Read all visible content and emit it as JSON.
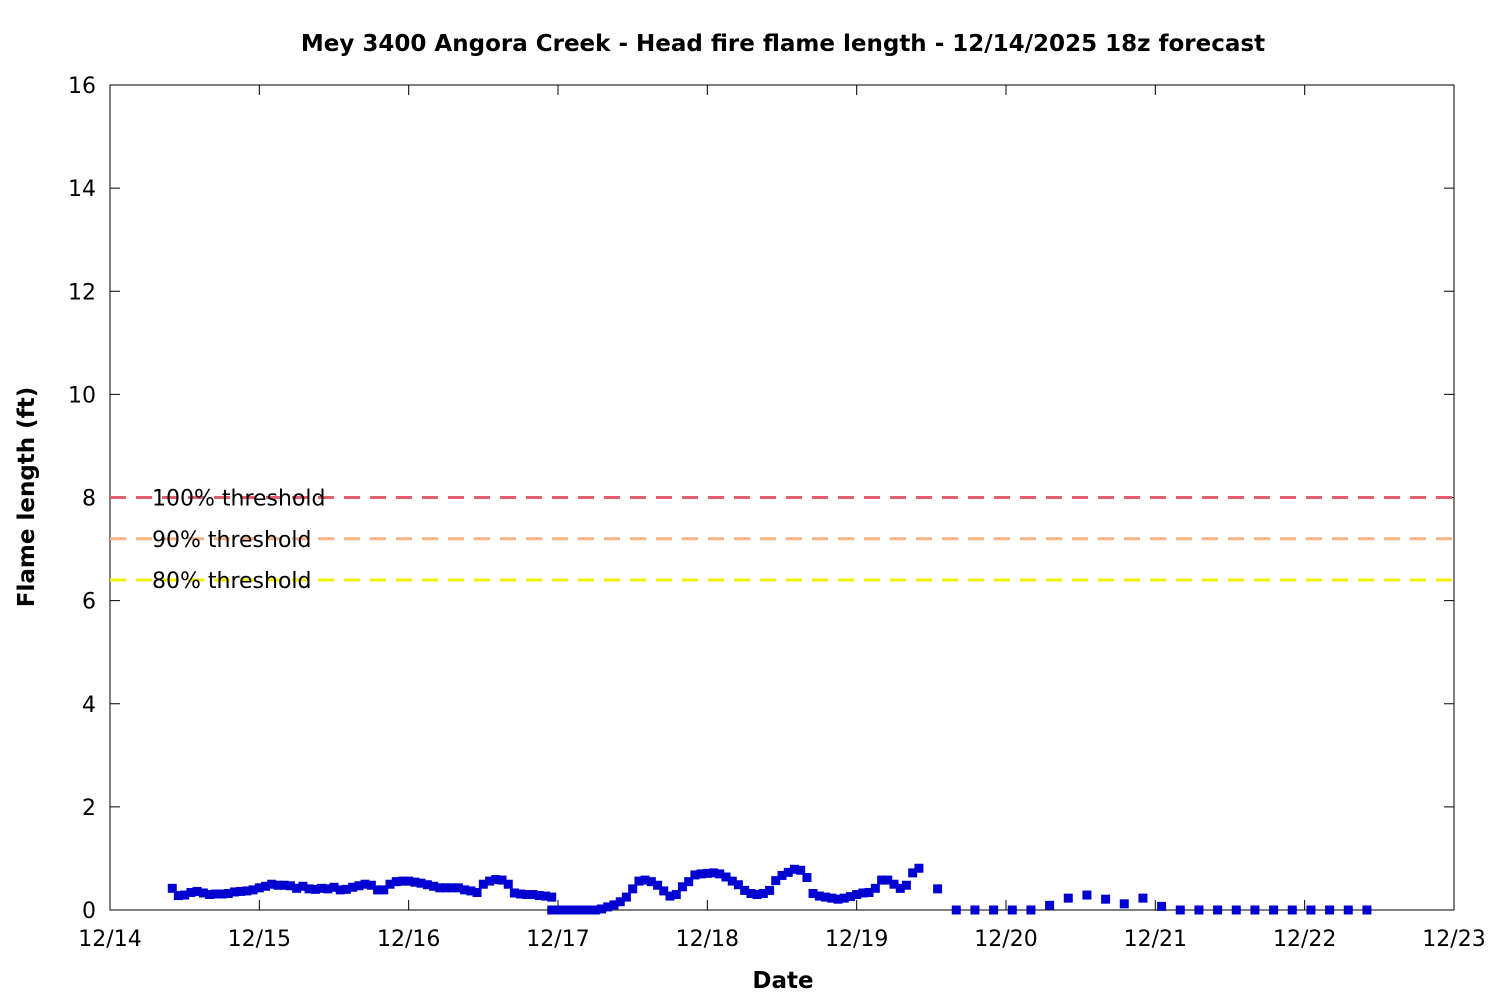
{
  "chart_data": {
    "type": "scatter",
    "title": "Mey 3400 Angora Creek - Head fire flame length - 12/14/2025 18z forecast",
    "xlabel": "Date",
    "ylabel": "Flame length (ft)",
    "xlim": [
      0,
      9
    ],
    "ylim": [
      0,
      16
    ],
    "x_ticks": [
      {
        "value": 0,
        "label": "12/14"
      },
      {
        "value": 1,
        "label": "12/15"
      },
      {
        "value": 2,
        "label": "12/16"
      },
      {
        "value": 3,
        "label": "12/17"
      },
      {
        "value": 4,
        "label": "12/18"
      },
      {
        "value": 5,
        "label": "12/19"
      },
      {
        "value": 6,
        "label": "12/20"
      },
      {
        "value": 7,
        "label": "12/21"
      },
      {
        "value": 8,
        "label": "12/22"
      },
      {
        "value": 9,
        "label": "12/23"
      }
    ],
    "y_ticks": [
      {
        "value": 0,
        "label": "0"
      },
      {
        "value": 2,
        "label": "2"
      },
      {
        "value": 4,
        "label": "4"
      },
      {
        "value": 6,
        "label": "6"
      },
      {
        "value": 8,
        "label": "8"
      },
      {
        "value": 10,
        "label": "10"
      },
      {
        "value": 12,
        "label": "12"
      },
      {
        "value": 14,
        "label": "14"
      },
      {
        "value": 16,
        "label": "16"
      }
    ],
    "grid": false,
    "thresholds": [
      {
        "name": "100% threshold",
        "value": 8.0,
        "color": "#e06070"
      },
      {
        "name": "90% threshold",
        "value": 7.2,
        "color": "#f4b483"
      },
      {
        "name": "80% threshold",
        "value": 6.4,
        "color": "#f2f200"
      }
    ],
    "series": [
      {
        "color": "#0000d0",
        "marker": "square",
        "points": [
          [
            0.417,
            0.42
          ],
          [
            0.458,
            0.28
          ],
          [
            0.5,
            0.29
          ],
          [
            0.542,
            0.34
          ],
          [
            0.583,
            0.36
          ],
          [
            0.625,
            0.33
          ],
          [
            0.667,
            0.3
          ],
          [
            0.708,
            0.31
          ],
          [
            0.75,
            0.31
          ],
          [
            0.792,
            0.32
          ],
          [
            0.833,
            0.35
          ],
          [
            0.875,
            0.36
          ],
          [
            0.917,
            0.37
          ],
          [
            0.958,
            0.39
          ],
          [
            1.0,
            0.43
          ],
          [
            1.042,
            0.46
          ],
          [
            1.083,
            0.5
          ],
          [
            1.125,
            0.48
          ],
          [
            1.167,
            0.48
          ],
          [
            1.208,
            0.47
          ],
          [
            1.25,
            0.42
          ],
          [
            1.292,
            0.46
          ],
          [
            1.333,
            0.41
          ],
          [
            1.375,
            0.4
          ],
          [
            1.417,
            0.42
          ],
          [
            1.458,
            0.41
          ],
          [
            1.5,
            0.44
          ],
          [
            1.542,
            0.39
          ],
          [
            1.583,
            0.4
          ],
          [
            1.625,
            0.44
          ],
          [
            1.667,
            0.47
          ],
          [
            1.708,
            0.5
          ],
          [
            1.75,
            0.48
          ],
          [
            1.792,
            0.39
          ],
          [
            1.833,
            0.39
          ],
          [
            1.875,
            0.5
          ],
          [
            1.917,
            0.55
          ],
          [
            1.958,
            0.56
          ],
          [
            2.0,
            0.56
          ],
          [
            2.042,
            0.54
          ],
          [
            2.083,
            0.52
          ],
          [
            2.125,
            0.49
          ],
          [
            2.167,
            0.46
          ],
          [
            2.208,
            0.43
          ],
          [
            2.25,
            0.43
          ],
          [
            2.292,
            0.43
          ],
          [
            2.333,
            0.43
          ],
          [
            2.375,
            0.39
          ],
          [
            2.417,
            0.37
          ],
          [
            2.458,
            0.34
          ],
          [
            2.5,
            0.5
          ],
          [
            2.542,
            0.56
          ],
          [
            2.583,
            0.59
          ],
          [
            2.625,
            0.58
          ],
          [
            2.667,
            0.5
          ],
          [
            2.708,
            0.33
          ],
          [
            2.75,
            0.31
          ],
          [
            2.792,
            0.3
          ],
          [
            2.833,
            0.3
          ],
          [
            2.875,
            0.28
          ],
          [
            2.917,
            0.27
          ],
          [
            2.958,
            0.25
          ],
          [
            2.958,
            0.0
          ],
          [
            3.0,
            0.0
          ],
          [
            3.042,
            0.0
          ],
          [
            3.083,
            0.0
          ],
          [
            3.125,
            0.0
          ],
          [
            3.167,
            0.0
          ],
          [
            3.208,
            0.0
          ],
          [
            3.25,
            0.0
          ],
          [
            3.292,
            0.02
          ],
          [
            3.333,
            0.06
          ],
          [
            3.375,
            0.1
          ],
          [
            3.417,
            0.16
          ],
          [
            3.458,
            0.25
          ],
          [
            3.5,
            0.41
          ],
          [
            3.542,
            0.56
          ],
          [
            3.583,
            0.58
          ],
          [
            3.625,
            0.55
          ],
          [
            3.667,
            0.48
          ],
          [
            3.708,
            0.37
          ],
          [
            3.75,
            0.27
          ],
          [
            3.792,
            0.3
          ],
          [
            3.833,
            0.45
          ],
          [
            3.875,
            0.55
          ],
          [
            3.917,
            0.68
          ],
          [
            3.958,
            0.7
          ],
          [
            4.0,
            0.71
          ],
          [
            4.042,
            0.72
          ],
          [
            4.083,
            0.7
          ],
          [
            4.125,
            0.64
          ],
          [
            4.167,
            0.56
          ],
          [
            4.208,
            0.49
          ],
          [
            4.25,
            0.38
          ],
          [
            4.292,
            0.32
          ],
          [
            4.333,
            0.3
          ],
          [
            4.375,
            0.32
          ],
          [
            4.417,
            0.38
          ],
          [
            4.458,
            0.57
          ],
          [
            4.5,
            0.67
          ],
          [
            4.542,
            0.73
          ],
          [
            4.583,
            0.79
          ],
          [
            4.625,
            0.77
          ],
          [
            4.667,
            0.63
          ],
          [
            4.708,
            0.32
          ],
          [
            4.75,
            0.27
          ],
          [
            4.792,
            0.25
          ],
          [
            4.833,
            0.23
          ],
          [
            4.875,
            0.21
          ],
          [
            4.917,
            0.23
          ],
          [
            4.958,
            0.26
          ],
          [
            5.0,
            0.3
          ],
          [
            5.042,
            0.33
          ],
          [
            5.083,
            0.34
          ],
          [
            5.125,
            0.42
          ],
          [
            5.167,
            0.58
          ],
          [
            5.208,
            0.58
          ],
          [
            5.25,
            0.5
          ],
          [
            5.292,
            0.42
          ],
          [
            5.333,
            0.48
          ],
          [
            5.375,
            0.72
          ],
          [
            5.417,
            0.81
          ],
          [
            5.542,
            0.41
          ],
          [
            5.667,
            0.0
          ],
          [
            5.792,
            0.0
          ],
          [
            5.917,
            0.0
          ],
          [
            6.042,
            0.0
          ],
          [
            6.167,
            0.0
          ],
          [
            6.292,
            0.09
          ],
          [
            6.417,
            0.23
          ],
          [
            6.542,
            0.29
          ],
          [
            6.667,
            0.21
          ],
          [
            6.792,
            0.12
          ],
          [
            6.917,
            0.23
          ],
          [
            7.042,
            0.07
          ],
          [
            7.167,
            0.0
          ],
          [
            7.292,
            0.0
          ],
          [
            7.417,
            0.0
          ],
          [
            7.542,
            0.0
          ],
          [
            7.667,
            0.0
          ],
          [
            7.792,
            0.0
          ],
          [
            7.917,
            0.0
          ],
          [
            8.042,
            0.0
          ],
          [
            8.167,
            0.0
          ],
          [
            8.292,
            0.0
          ],
          [
            8.417,
            0.0
          ]
        ]
      }
    ]
  }
}
